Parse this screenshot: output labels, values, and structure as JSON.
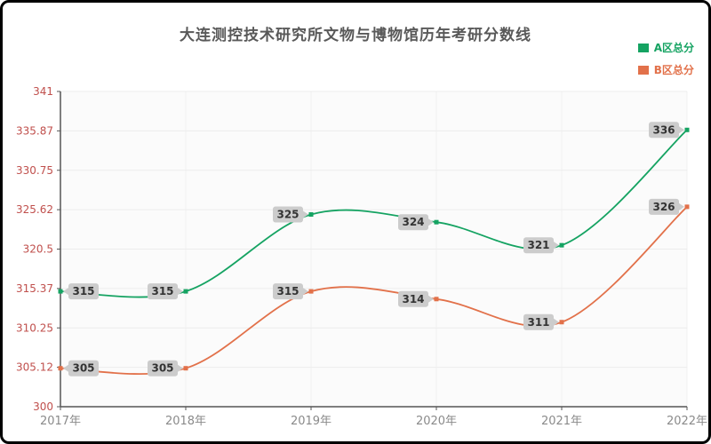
{
  "title": "大连测控技术研究所文物与博物馆历年考研分数线",
  "legend": {
    "items": [
      {
        "label": "A区总分"
      },
      {
        "label": "B区总分"
      }
    ]
  },
  "chart_data": {
    "type": "line",
    "smooth": true,
    "grid": true,
    "legend_position": "top-right",
    "title": "大连测控技术研究所文物与博物馆历年考研分数线",
    "xlabel": "",
    "ylabel": "",
    "categories": [
      "2017年",
      "2018年",
      "2019年",
      "2020年",
      "2021年",
      "2022年"
    ],
    "series": [
      {
        "name": "A区总分",
        "color": "#15a362",
        "values": [
          315,
          315,
          325,
          324,
          321,
          336
        ]
      },
      {
        "name": "B区总分",
        "color": "#e2714a",
        "values": [
          305,
          305,
          315,
          314,
          311,
          326
        ]
      }
    ],
    "ylim": [
      300,
      341
    ],
    "y_tick_labels": [
      "300",
      "305.12",
      "310.25",
      "315.37",
      "320.5",
      "325.62",
      "330.75",
      "335.87",
      "341"
    ],
    "data_labels": true
  },
  "style": {
    "title_color": "#595959",
    "y_label_color": "#c0504d",
    "x_label_color": "#8a8a8a",
    "axis_color": "#555555",
    "gridline_color": "#ececec",
    "v_gridline_color": "#f2f2f2",
    "plot_bg": "#fbfbfb",
    "label_box_fill": "#cccccc",
    "label_text_color": "#333333"
  }
}
